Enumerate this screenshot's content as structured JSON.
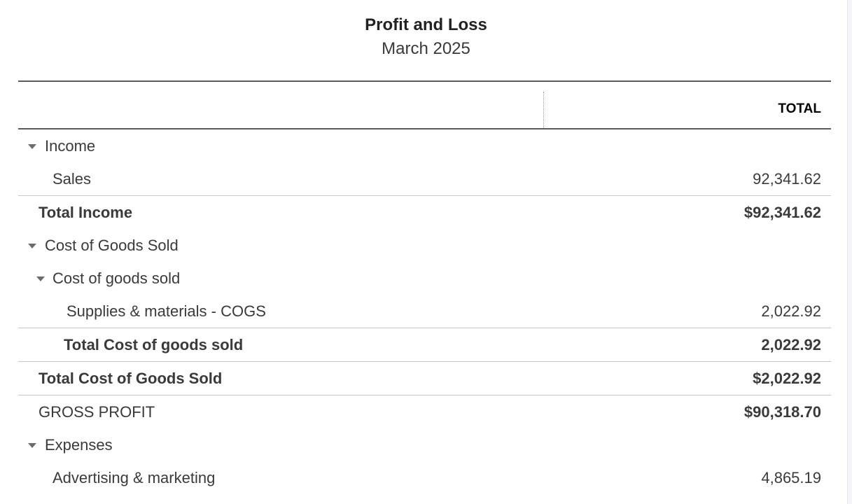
{
  "report": {
    "title": "Profit and Loss",
    "period": "March 2025",
    "column_header": "TOTAL"
  },
  "rows": [
    {
      "label": "Income",
      "value": "",
      "type": "section"
    },
    {
      "label": "Sales",
      "value": "92,341.62",
      "type": "item"
    },
    {
      "label": "Total Income",
      "value": "$92,341.62",
      "type": "total"
    },
    {
      "label": "Cost of Goods Sold",
      "value": "",
      "type": "section"
    },
    {
      "label": "Cost of goods sold",
      "value": "",
      "type": "section"
    },
    {
      "label": "Supplies & materials - COGS",
      "value": "2,022.92",
      "type": "item"
    },
    {
      "label": "Total Cost of goods sold",
      "value": "2,022.92",
      "type": "total"
    },
    {
      "label": "Total Cost of Goods Sold",
      "value": "$2,022.92",
      "type": "total"
    },
    {
      "label": "GROSS PROFIT",
      "value": "$90,318.70",
      "type": "summary"
    },
    {
      "label": "Expenses",
      "value": "",
      "type": "section"
    },
    {
      "label": "Advertising & marketing",
      "value": "4,865.19",
      "type": "item"
    }
  ]
}
